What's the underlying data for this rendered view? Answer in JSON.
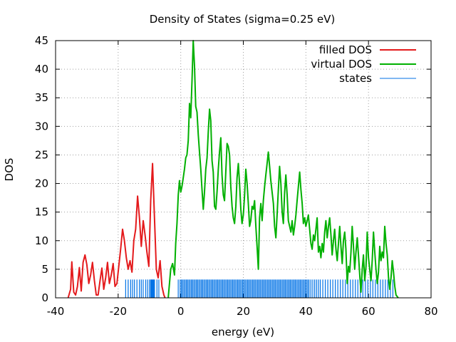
{
  "chart_data": {
    "type": "line",
    "title": "Density of States (sigma=0.25 eV)",
    "xlabel": "energy (eV)",
    "ylabel": "DOS",
    "xlim": [
      -40,
      80
    ],
    "ylim": [
      0,
      45
    ],
    "x_ticks": [
      -40,
      -20,
      0,
      20,
      40,
      60,
      80
    ],
    "y_ticks": [
      0,
      5,
      10,
      15,
      20,
      25,
      30,
      35,
      40,
      45
    ],
    "x_tick_labels": [
      "-40",
      "-20",
      "0",
      "20",
      "40",
      "60",
      "80"
    ],
    "y_tick_labels": [
      "0",
      "5",
      "10",
      "15",
      "20",
      "25",
      "30",
      "35",
      "40",
      "45"
    ],
    "grid": true,
    "legend_position": "top-right",
    "series": [
      {
        "name": "filled DOS",
        "kind": "line",
        "color": "#e41a1c",
        "points": [
          [
            -36,
            0
          ],
          [
            -35.2,
            1.5
          ],
          [
            -34.8,
            6.3
          ],
          [
            -34.2,
            1.0
          ],
          [
            -33.6,
            0.5
          ],
          [
            -33.0,
            2.0
          ],
          [
            -32.4,
            5.3
          ],
          [
            -31.8,
            1.2
          ],
          [
            -31.2,
            6.2
          ],
          [
            -30.6,
            7.5
          ],
          [
            -30.0,
            5.8
          ],
          [
            -29.4,
            2.5
          ],
          [
            -28.8,
            4.0
          ],
          [
            -28.2,
            6.2
          ],
          [
            -27.6,
            3.0
          ],
          [
            -27.0,
            0.5
          ],
          [
            -26.4,
            0.5
          ],
          [
            -25.8,
            3.0
          ],
          [
            -25.2,
            5.2
          ],
          [
            -24.6,
            1.5
          ],
          [
            -24.0,
            3.5
          ],
          [
            -23.4,
            6.2
          ],
          [
            -22.8,
            2.5
          ],
          [
            -22.2,
            4.0
          ],
          [
            -21.6,
            6.0
          ],
          [
            -21.0,
            2.0
          ],
          [
            -20.4,
            2.5
          ],
          [
            -19.8,
            5.5
          ],
          [
            -19.2,
            8.5
          ],
          [
            -18.6,
            12.0
          ],
          [
            -18.0,
            10.0
          ],
          [
            -17.4,
            7.0
          ],
          [
            -16.8,
            5.0
          ],
          [
            -16.2,
            6.5
          ],
          [
            -15.6,
            4.5
          ],
          [
            -15.0,
            10.0
          ],
          [
            -14.4,
            12.0
          ],
          [
            -13.8,
            17.8
          ],
          [
            -13.2,
            14.0
          ],
          [
            -12.6,
            9.0
          ],
          [
            -12.0,
            13.5
          ],
          [
            -11.4,
            11.0
          ],
          [
            -10.8,
            8.0
          ],
          [
            -10.2,
            5.5
          ],
          [
            -9.6,
            17.0
          ],
          [
            -9.0,
            23.5
          ],
          [
            -8.4,
            14.0
          ],
          [
            -7.8,
            5.0
          ],
          [
            -7.2,
            3.5
          ],
          [
            -6.6,
            6.5
          ],
          [
            -6.0,
            2.0
          ],
          [
            -5.4,
            0.5
          ],
          [
            -5.0,
            0
          ]
        ]
      },
      {
        "name": "virtual DOS",
        "kind": "line",
        "color": "#00b000",
        "points": [
          [
            -4.0,
            0
          ],
          [
            -3.2,
            5.0
          ],
          [
            -2.6,
            6.0
          ],
          [
            -2.0,
            4.0
          ],
          [
            -1.6,
            9.5
          ],
          [
            -1.2,
            13.0
          ],
          [
            -0.8,
            18.0
          ],
          [
            -0.4,
            20.5
          ],
          [
            0.0,
            18.5
          ],
          [
            0.4,
            19.5
          ],
          [
            0.8,
            21.0
          ],
          [
            1.2,
            22.5
          ],
          [
            1.6,
            24.5
          ],
          [
            2.0,
            25.0
          ],
          [
            2.4,
            27.5
          ],
          [
            2.8,
            34.0
          ],
          [
            3.2,
            31.5
          ],
          [
            3.6,
            38.0
          ],
          [
            4.0,
            45.0
          ],
          [
            4.4,
            40.5
          ],
          [
            4.8,
            33.5
          ],
          [
            5.2,
            32.5
          ],
          [
            5.6,
            28.5
          ],
          [
            6.0,
            25.5
          ],
          [
            6.4,
            22.5
          ],
          [
            6.8,
            19.0
          ],
          [
            7.2,
            15.5
          ],
          [
            7.6,
            18.5
          ],
          [
            8.0,
            22.5
          ],
          [
            8.4,
            24.5
          ],
          [
            8.8,
            29.0
          ],
          [
            9.2,
            33.0
          ],
          [
            9.6,
            31.0
          ],
          [
            10.0,
            24.0
          ],
          [
            10.4,
            22.0
          ],
          [
            10.8,
            16.0
          ],
          [
            11.2,
            15.5
          ],
          [
            11.6,
            18.5
          ],
          [
            12.0,
            22.5
          ],
          [
            12.4,
            25.5
          ],
          [
            12.8,
            28.0
          ],
          [
            13.2,
            21.5
          ],
          [
            13.6,
            18.0
          ],
          [
            14.0,
            17.0
          ],
          [
            14.4,
            22.0
          ],
          [
            14.8,
            27.0
          ],
          [
            15.2,
            26.5
          ],
          [
            15.6,
            25.0
          ],
          [
            16.0,
            19.5
          ],
          [
            16.4,
            16.0
          ],
          [
            16.8,
            14.0
          ],
          [
            17.2,
            13.0
          ],
          [
            17.6,
            16.0
          ],
          [
            18.0,
            21.0
          ],
          [
            18.4,
            23.5
          ],
          [
            18.8,
            20.0
          ],
          [
            19.2,
            15.5
          ],
          [
            19.6,
            13.0
          ],
          [
            20.0,
            14.5
          ],
          [
            20.4,
            18.0
          ],
          [
            20.8,
            22.5
          ],
          [
            21.2,
            20.0
          ],
          [
            21.6,
            16.5
          ],
          [
            22.0,
            12.5
          ],
          [
            22.4,
            13.5
          ],
          [
            22.8,
            16.0
          ],
          [
            23.2,
            15.5
          ],
          [
            23.6,
            17.0
          ],
          [
            24.0,
            12.5
          ],
          [
            24.4,
            9.0
          ],
          [
            24.8,
            5.0
          ],
          [
            25.2,
            14.0
          ],
          [
            25.6,
            16.5
          ],
          [
            26.0,
            13.5
          ],
          [
            26.4,
            17.0
          ],
          [
            26.8,
            19.5
          ],
          [
            27.2,
            21.5
          ],
          [
            27.6,
            23.5
          ],
          [
            28.0,
            25.5
          ],
          [
            28.4,
            23.0
          ],
          [
            28.8,
            20.5
          ],
          [
            29.2,
            18.5
          ],
          [
            29.6,
            16.5
          ],
          [
            30.0,
            12.5
          ],
          [
            30.4,
            10.5
          ],
          [
            30.8,
            14.5
          ],
          [
            31.2,
            19.0
          ],
          [
            31.6,
            23.0
          ],
          [
            32.0,
            20.0
          ],
          [
            32.4,
            15.0
          ],
          [
            32.8,
            13.0
          ],
          [
            33.2,
            18.5
          ],
          [
            33.6,
            21.5
          ],
          [
            34.0,
            18.0
          ],
          [
            34.4,
            13.5
          ],
          [
            34.8,
            12.5
          ],
          [
            35.2,
            11.5
          ],
          [
            35.6,
            13.5
          ],
          [
            36.0,
            11.0
          ],
          [
            36.4,
            12.5
          ],
          [
            36.8,
            14.5
          ],
          [
            37.2,
            17.0
          ],
          [
            37.6,
            19.5
          ],
          [
            38.0,
            22.0
          ],
          [
            38.4,
            19.0
          ],
          [
            38.8,
            16.5
          ],
          [
            39.2,
            13.0
          ],
          [
            39.6,
            14.0
          ],
          [
            40.0,
            12.5
          ],
          [
            40.4,
            13.5
          ],
          [
            40.8,
            14.5
          ],
          [
            41.2,
            12.0
          ],
          [
            41.6,
            9.5
          ],
          [
            42.0,
            8.5
          ],
          [
            42.4,
            11.0
          ],
          [
            42.8,
            10.0
          ],
          [
            43.2,
            12.0
          ],
          [
            43.6,
            14.0
          ],
          [
            44.0,
            8.0
          ],
          [
            44.4,
            9.0
          ],
          [
            44.8,
            7.0
          ],
          [
            45.2,
            9.5
          ],
          [
            45.6,
            8.0
          ],
          [
            46.0,
            11.5
          ],
          [
            46.4,
            13.5
          ],
          [
            46.8,
            10.5
          ],
          [
            47.2,
            12.5
          ],
          [
            47.6,
            14.0
          ],
          [
            48.0,
            11.0
          ],
          [
            48.4,
            7.5
          ],
          [
            48.8,
            10.0
          ],
          [
            49.2,
            12.0
          ],
          [
            49.6,
            8.5
          ],
          [
            50.0,
            6.5
          ],
          [
            50.4,
            9.5
          ],
          [
            50.8,
            12.5
          ],
          [
            51.2,
            9.0
          ],
          [
            51.6,
            6.0
          ],
          [
            52.0,
            10.0
          ],
          [
            52.4,
            11.5
          ],
          [
            52.8,
            8.5
          ],
          [
            53.2,
            2.5
          ],
          [
            53.6,
            5.5
          ],
          [
            54.0,
            4.5
          ],
          [
            54.4,
            8.0
          ],
          [
            54.8,
            12.5
          ],
          [
            55.2,
            9.0
          ],
          [
            55.6,
            5.0
          ],
          [
            56.0,
            8.0
          ],
          [
            56.4,
            10.5
          ],
          [
            56.8,
            7.5
          ],
          [
            57.2,
            4.0
          ],
          [
            57.6,
            1.0
          ],
          [
            58.0,
            5.0
          ],
          [
            58.4,
            7.5
          ],
          [
            58.8,
            3.0
          ],
          [
            59.2,
            5.5
          ],
          [
            59.6,
            11.5
          ],
          [
            60.0,
            7.0
          ],
          [
            60.4,
            5.0
          ],
          [
            60.8,
            3.0
          ],
          [
            61.2,
            6.5
          ],
          [
            61.6,
            11.5
          ],
          [
            62.0,
            8.0
          ],
          [
            62.4,
            5.0
          ],
          [
            62.8,
            2.5
          ],
          [
            63.2,
            4.5
          ],
          [
            63.6,
            9.0
          ],
          [
            64.0,
            6.5
          ],
          [
            64.4,
            8.0
          ],
          [
            64.8,
            7.0
          ],
          [
            65.2,
            12.5
          ],
          [
            65.6,
            9.5
          ],
          [
            66.0,
            7.5
          ],
          [
            66.4,
            3.5
          ],
          [
            66.8,
            1.5
          ],
          [
            67.2,
            3.5
          ],
          [
            67.6,
            6.5
          ],
          [
            68.0,
            4.5
          ],
          [
            68.4,
            2.0
          ],
          [
            68.8,
            0.5
          ],
          [
            69.5,
            0
          ]
        ]
      },
      {
        "name": "states",
        "kind": "impulses",
        "color": "#0072e6",
        "height": 3.2,
        "x": [
          -17.6,
          -16.8,
          -16.0,
          -15.4,
          -14.8,
          -14.0,
          -13.2,
          -12.6,
          -12.0,
          -11.2,
          -10.6,
          -10.0,
          -9.6,
          -9.4,
          -9.2,
          -9.0,
          -8.8,
          -8.6,
          -8.4,
          -7.6,
          -7.0,
          -0.8,
          -0.2,
          0.2,
          0.6,
          1.0,
          1.4,
          1.8,
          2.2,
          2.6,
          3.0,
          3.4,
          3.8,
          4.2,
          4.6,
          5.0,
          5.4,
          5.8,
          6.2,
          6.6,
          7.0,
          7.4,
          7.8,
          8.2,
          8.6,
          9.0,
          9.4,
          9.8,
          10.2,
          10.6,
          11.0,
          11.4,
          11.8,
          12.2,
          12.6,
          13.0,
          13.4,
          13.8,
          14.2,
          14.6,
          15.0,
          15.4,
          15.8,
          16.2,
          16.6,
          17.0,
          17.4,
          17.8,
          18.2,
          18.6,
          19.0,
          19.4,
          19.8,
          20.2,
          20.6,
          21.0,
          21.4,
          21.8,
          22.2,
          22.6,
          23.0,
          23.4,
          23.8,
          24.2,
          24.6,
          25.0,
          25.4,
          25.8,
          26.2,
          26.6,
          27.0,
          27.4,
          27.8,
          28.2,
          28.6,
          29.0,
          29.4,
          29.8,
          30.2,
          30.6,
          31.0,
          31.4,
          31.8,
          32.2,
          32.6,
          33.0,
          33.4,
          33.8,
          34.2,
          34.6,
          35.0,
          35.4,
          35.8,
          36.2,
          36.6,
          37.0,
          37.4,
          37.8,
          38.2,
          38.6,
          39.0,
          39.4,
          39.8,
          40.2,
          40.6,
          41.0,
          41.6,
          42.2,
          42.8,
          43.4,
          44.0,
          44.6,
          45.4,
          46.2,
          47.0,
          47.8,
          48.6,
          49.4,
          50.2,
          51.0,
          51.8,
          52.6,
          53.4,
          54.2,
          55.0,
          55.8,
          56.6,
          57.4,
          58.2,
          59.0,
          59.8,
          60.6,
          61.4,
          62.2,
          63.0,
          63.8,
          64.6,
          65.4,
          66.2,
          67.0,
          67.8
        ]
      }
    ]
  }
}
